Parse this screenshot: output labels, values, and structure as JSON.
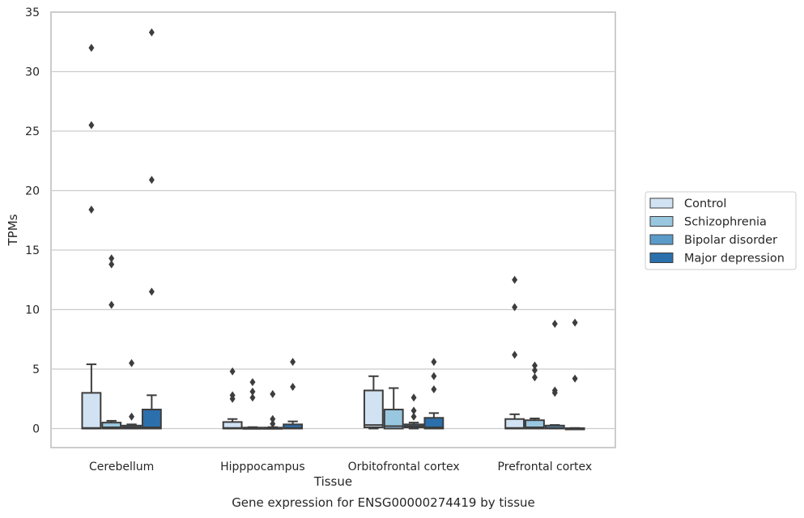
{
  "chart_data": {
    "type": "box",
    "xlabel": "Tissue",
    "ylabel": "TPMs",
    "caption": "Gene expression for ENSG00000274419 by tissue",
    "ylim": [
      -1.6,
      35
    ],
    "yticks": [
      0,
      5,
      10,
      15,
      20,
      25,
      30,
      35
    ],
    "grid": "horizontal",
    "legend_position": "right",
    "categories": [
      "Cerebellum",
      "Hipppocampus",
      "Orbitofrontal cortex",
      "Prefrontal cortex"
    ],
    "series": [
      {
        "name": "Control",
        "color": "#d1e2f3",
        "boxes": [
          {
            "q1": 0,
            "median": 0.05,
            "q3": 3.0,
            "whisker_low": 0,
            "whisker_high": 5.4,
            "outliers": [
              32.0,
              25.5,
              18.4
            ]
          },
          {
            "q1": 0,
            "median": 0.05,
            "q3": 0.55,
            "whisker_low": 0,
            "whisker_high": 0.8,
            "outliers": [
              4.8,
              2.8,
              2.5
            ]
          },
          {
            "q1": 0.1,
            "median": 0.3,
            "q3": 3.2,
            "whisker_low": 0,
            "whisker_high": 4.4,
            "outliers": []
          },
          {
            "q1": 0,
            "median": 0.05,
            "q3": 0.8,
            "whisker_low": 0,
            "whisker_high": 1.2,
            "outliers": [
              12.5,
              10.2,
              6.2
            ]
          }
        ]
      },
      {
        "name": "Schizophrenia",
        "color": "#9ac7e0",
        "boxes": [
          {
            "q1": 0,
            "median": 0.1,
            "q3": 0.5,
            "whisker_low": 0,
            "whisker_high": 0.65,
            "outliers": [
              14.3,
              13.8,
              10.4
            ]
          },
          {
            "q1": 0,
            "median": 0.02,
            "q3": 0.08,
            "whisker_low": 0,
            "whisker_high": 0.12,
            "outliers": [
              3.9,
              3.1,
              2.6
            ]
          },
          {
            "q1": 0,
            "median": 0.2,
            "q3": 1.6,
            "whisker_low": 0,
            "whisker_high": 3.4,
            "outliers": []
          },
          {
            "q1": 0,
            "median": 0.1,
            "q3": 0.7,
            "whisker_low": 0,
            "whisker_high": 0.85,
            "outliers": [
              5.3,
              4.9,
              4.3
            ]
          }
        ]
      },
      {
        "name": "Bipolar disorder",
        "color": "#5b9bc9",
        "boxes": [
          {
            "q1": 0,
            "median": 0.1,
            "q3": 0.25,
            "whisker_low": 0,
            "whisker_high": 0.35,
            "outliers": [
              5.5,
              1.0
            ]
          },
          {
            "q1": 0,
            "median": 0.02,
            "q3": 0.08,
            "whisker_low": 0,
            "whisker_high": 0.12,
            "outliers": [
              2.9,
              0.8,
              0.4
            ]
          },
          {
            "q1": 0.1,
            "median": 0.2,
            "q3": 0.35,
            "whisker_low": 0,
            "whisker_high": 0.5,
            "outliers": [
              2.6,
              1.5,
              1.0
            ]
          },
          {
            "q1": 0,
            "median": 0.05,
            "q3": 0.25,
            "whisker_low": 0,
            "whisker_high": 0.3,
            "outliers": [
              8.8,
              3.2,
              3.0
            ]
          }
        ]
      },
      {
        "name": "Major depression",
        "color": "#2c6fad",
        "boxes": [
          {
            "q1": 0,
            "median": 0.1,
            "q3": 1.6,
            "whisker_low": 0,
            "whisker_high": 2.8,
            "outliers": [
              33.3,
              20.9,
              11.5
            ]
          },
          {
            "q1": 0,
            "median": 0.05,
            "q3": 0.35,
            "whisker_low": 0,
            "whisker_high": 0.6,
            "outliers": [
              5.6,
              3.5
            ]
          },
          {
            "q1": 0,
            "median": 0.1,
            "q3": 0.9,
            "whisker_low": 0,
            "whisker_high": 1.3,
            "outliers": [
              5.6,
              4.4,
              3.3
            ]
          },
          {
            "q1": 0,
            "median": 0.0,
            "q3": 0.03,
            "whisker_low": 0,
            "whisker_high": 0.05,
            "outliers": [
              8.9,
              4.2
            ]
          }
        ]
      }
    ]
  }
}
